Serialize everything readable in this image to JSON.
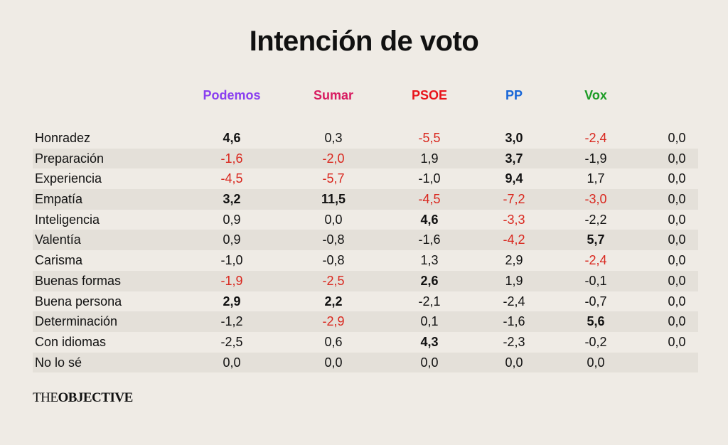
{
  "chart_data": {
    "type": "table",
    "title": "Intención de voto",
    "columns": [
      {
        "name": "Podemos",
        "color": "#8a3ff0"
      },
      {
        "name": "Sumar",
        "color": "#d81b60"
      },
      {
        "name": "PSOE",
        "color": "#e8141b"
      },
      {
        "name": "PP",
        "color": "#1766d8"
      },
      {
        "name": "Vox",
        "color": "#1c9c25"
      },
      {
        "name": "",
        "color": "#111111"
      }
    ],
    "rows": [
      {
        "label": "Honradez",
        "values": [
          "4,6",
          "0,3",
          "-5,5",
          "3,0",
          "-2,4",
          "0,0"
        ],
        "bold": [
          0,
          3
        ],
        "neg": [
          2,
          4
        ]
      },
      {
        "label": "Preparación",
        "values": [
          "-1,6",
          "-2,0",
          "1,9",
          "3,7",
          "-1,9",
          "0,0"
        ],
        "bold": [
          3
        ],
        "neg": [
          0,
          1
        ]
      },
      {
        "label": "Experiencia",
        "values": [
          "-4,5",
          "-5,7",
          "-1,0",
          "9,4",
          "1,7",
          "0,0"
        ],
        "bold": [
          3
        ],
        "neg": [
          0,
          1
        ]
      },
      {
        "label": "Empatía",
        "values": [
          "3,2",
          "11,5",
          "-4,5",
          "-7,2",
          "-3,0",
          "0,0"
        ],
        "bold": [
          0,
          1
        ],
        "neg": [
          2,
          3,
          4
        ]
      },
      {
        "label": "Inteligencia",
        "values": [
          "0,9",
          "0,0",
          "4,6",
          "-3,3",
          "-2,2",
          "0,0"
        ],
        "bold": [
          2
        ],
        "neg": [
          3
        ]
      },
      {
        "label": "Valentía",
        "values": [
          "0,9",
          "-0,8",
          "-1,6",
          "-4,2",
          "5,7",
          "0,0"
        ],
        "bold": [
          4
        ],
        "neg": [
          3
        ]
      },
      {
        "label": "Carisma",
        "values": [
          "-1,0",
          "-0,8",
          "1,3",
          "2,9",
          "-2,4",
          "0,0"
        ],
        "bold": [],
        "neg": [
          4
        ]
      },
      {
        "label": "Buenas formas",
        "values": [
          "-1,9",
          "-2,5",
          "2,6",
          "1,9",
          "-0,1",
          "0,0"
        ],
        "bold": [
          2
        ],
        "neg": [
          0,
          1
        ]
      },
      {
        "label": "Buena persona",
        "values": [
          "2,9",
          "2,2",
          "-2,1",
          "-2,4",
          "-0,7",
          "0,0"
        ],
        "bold": [
          0,
          1
        ],
        "neg": []
      },
      {
        "label": "Determinación",
        "values": [
          "-1,2",
          "-2,9",
          "0,1",
          "-1,6",
          "5,6",
          "0,0"
        ],
        "bold": [
          4
        ],
        "neg": [
          1
        ]
      },
      {
        "label": "Con idiomas",
        "values": [
          "-2,5",
          "0,6",
          "4,3",
          "-2,3",
          "-0,2",
          "0,0"
        ],
        "bold": [
          2
        ],
        "neg": []
      },
      {
        "label": "No lo sé",
        "values": [
          "0,0",
          "0,0",
          "0,0",
          "0,0",
          "0,0",
          ""
        ],
        "bold": [],
        "neg": []
      }
    ]
  },
  "branding": {
    "logo_part1": "THE",
    "logo_part2": "OBJECTIVE"
  }
}
